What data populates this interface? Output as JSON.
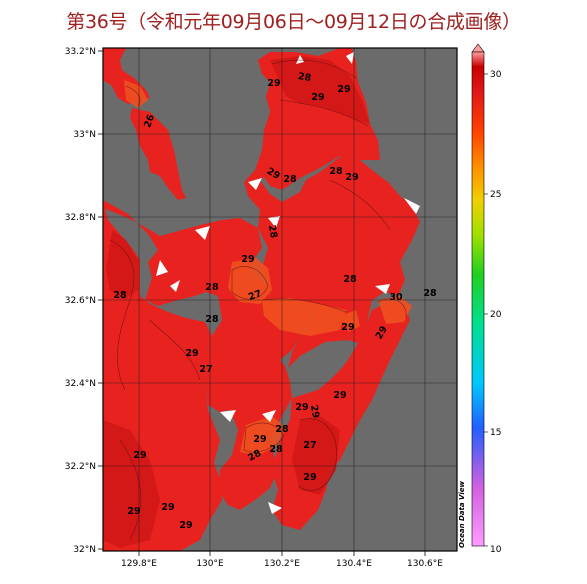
{
  "title": "第36号（令和元年09月06日〜09月12日の合成画像）",
  "map": {
    "lat_ticks": [
      "33.2°N",
      "33°N",
      "32.8°N",
      "32.6°N",
      "32.4°N",
      "32.2°N",
      "32°N"
    ],
    "lon_ticks": [
      "129.8°E",
      "130°E",
      "130.2°E",
      "130.4°E",
      "130.6°E"
    ],
    "land_color": "#6b6b6b",
    "sea_color": "#e8231f",
    "credit": "Ocean Data View",
    "contour_labels": [
      "29",
      "28",
      "29",
      "26",
      "29",
      "29",
      "28",
      "28",
      "29",
      "28",
      "29",
      "28",
      "28",
      "28",
      "27",
      "28",
      "30",
      "29",
      "28",
      "29",
      "27",
      "29",
      "29",
      "29",
      "29",
      "28",
      "29",
      "28",
      "28",
      "27",
      "29",
      "29",
      "29",
      "29",
      "29"
    ]
  },
  "colorbar": {
    "ticks": [
      "30",
      "25",
      "20",
      "15",
      "10"
    ],
    "min": 10,
    "max": 30.5,
    "colors": [
      "#ff9cff",
      "#d060e0",
      "#2060ff",
      "#00c8ff",
      "#00e090",
      "#20d020",
      "#a0e000",
      "#f0d000",
      "#ff8c00",
      "#ff4000",
      "#e01818",
      "#c80000",
      "#ff9c9c"
    ]
  }
}
